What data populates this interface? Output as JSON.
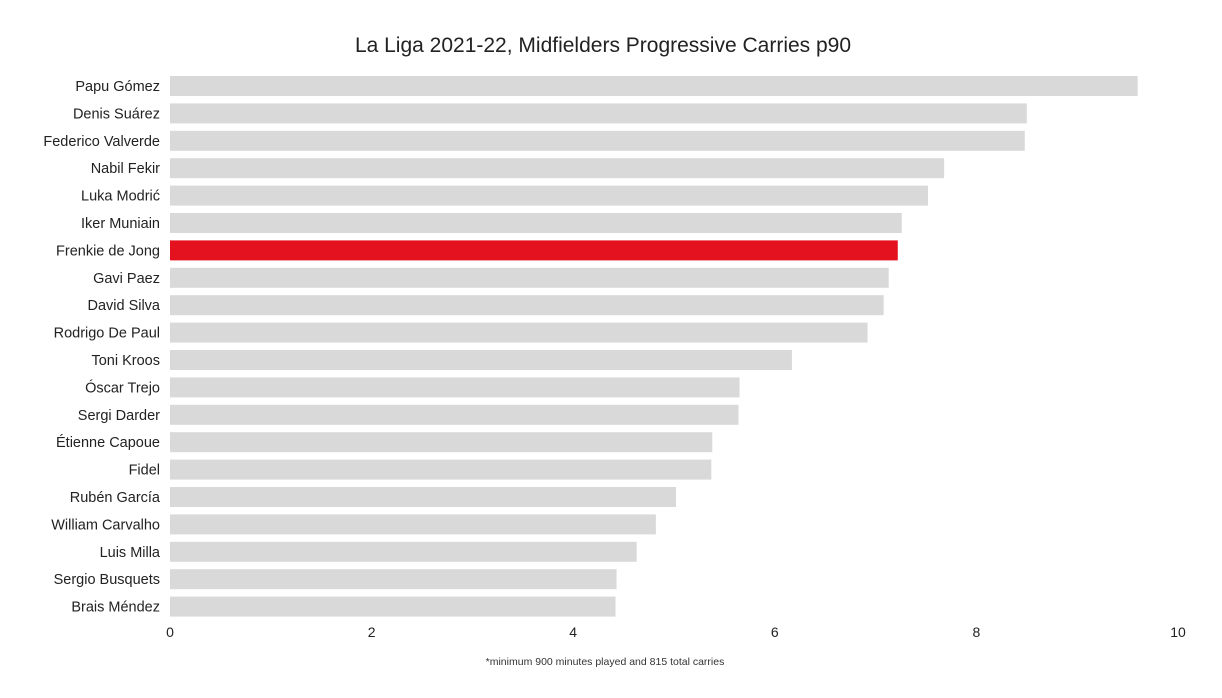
{
  "chart_data": {
    "type": "bar",
    "orientation": "horizontal",
    "title": "La Liga 2021-22, Midfielders Progressive Carries p90",
    "footnote": "*minimum 900 minutes played and 815 total carries",
    "xlabel": "",
    "ylabel": "",
    "xlim": [
      0,
      10
    ],
    "xticks": [
      "0",
      "2",
      "4",
      "6",
      "8",
      "10"
    ],
    "xtick_values": [
      0,
      2,
      4,
      6,
      8,
      10
    ],
    "grid": false,
    "colors": {
      "default": "#d9d9d9",
      "highlight": "#e3121e"
    },
    "highlight": "Frenkie de Jong",
    "categories": [
      "Papu Gómez",
      "Denis Suárez",
      "Federico Valverde",
      "Nabil Fekir",
      "Luka Modrić",
      "Iker Muniain",
      "Frenkie de Jong",
      "Gavi Paez",
      "David Silva",
      "Rodrigo De Paul",
      "Toni Kroos",
      "Óscar Trejo",
      "Sergi Darder",
      "Étienne Capoue",
      "Fidel",
      "Rubén García",
      "William Carvalho",
      "Luis Milla",
      "Sergio Busquets",
      "Brais Méndez"
    ],
    "values": [
      9.6,
      8.5,
      8.48,
      7.68,
      7.52,
      7.26,
      7.22,
      7.13,
      7.08,
      6.92,
      6.17,
      5.65,
      5.64,
      5.38,
      5.37,
      5.02,
      4.82,
      4.63,
      4.43,
      4.42
    ]
  }
}
